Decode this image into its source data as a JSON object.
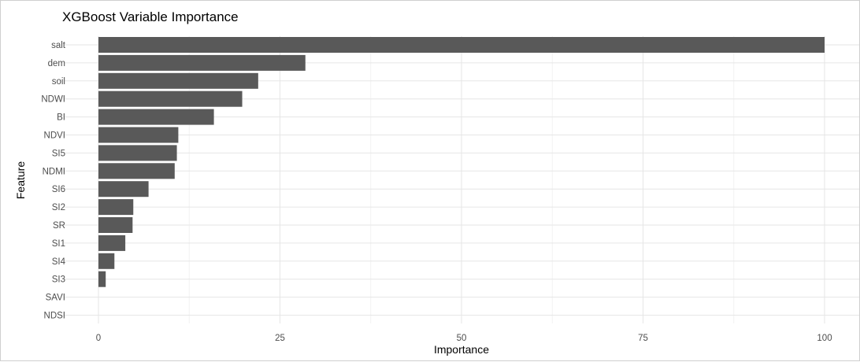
{
  "chart_data": {
    "type": "bar",
    "orientation": "horizontal",
    "title": "XGBoost Variable Importance",
    "xlabel": "Importance",
    "ylabel": "Feature",
    "categories": [
      "salt",
      "dem",
      "soil",
      "NDWI",
      "BI",
      "NDVI",
      "SI5",
      "NDMI",
      "SI6",
      "SI2",
      "SR",
      "SI1",
      "SI4",
      "SI3",
      "SAVI",
      "NDSI"
    ],
    "values": [
      100,
      28.5,
      22.0,
      19.8,
      15.9,
      11.0,
      10.8,
      10.5,
      6.9,
      4.8,
      4.7,
      3.7,
      2.2,
      1.0,
      0.0,
      0.0
    ],
    "xlim": [
      0,
      100
    ],
    "xticks": [
      0,
      25,
      50,
      75,
      100
    ],
    "grid": true,
    "bar_color": "#595959",
    "legend": "none"
  }
}
